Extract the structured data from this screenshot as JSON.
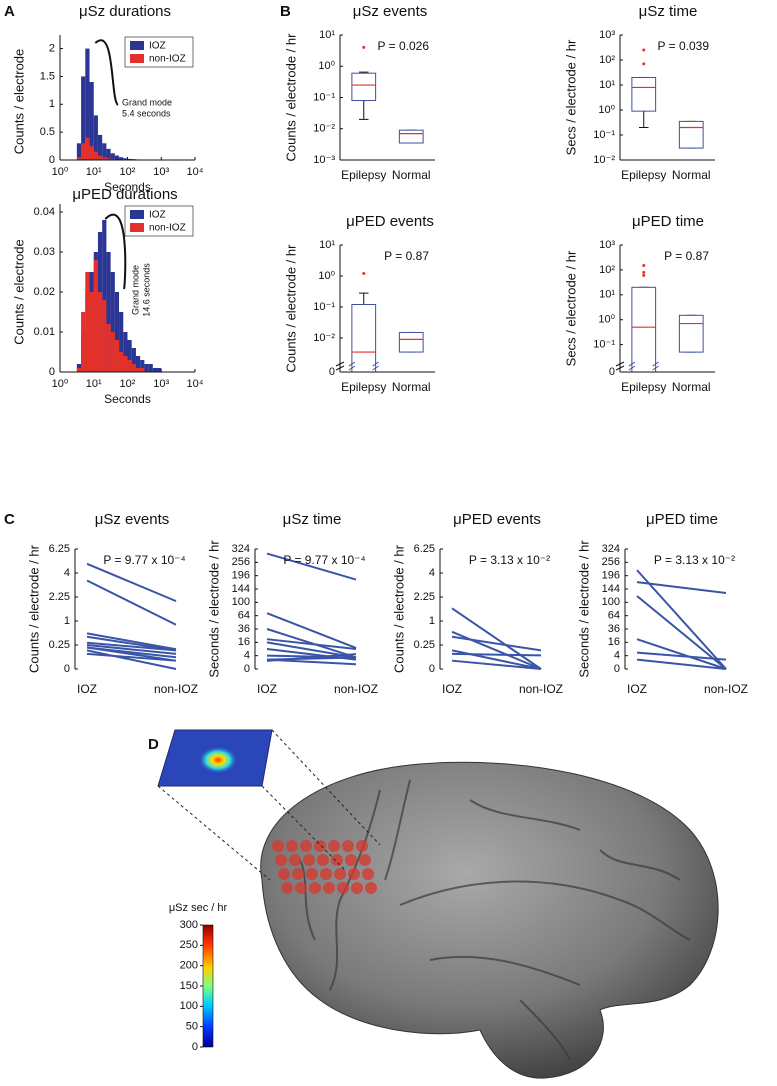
{
  "chart_data": [
    {
      "type": "histogram",
      "panel": "A",
      "title": "μSz durations",
      "xlabel": "Seconds",
      "ylabel": "Counts / electrode",
      "xscale": "log",
      "xlim": [
        1,
        10000
      ],
      "xticks": [
        {
          "value": 1,
          "label": "10⁰"
        },
        {
          "value": 10,
          "label": "10¹"
        },
        {
          "value": 100,
          "label": "10²"
        },
        {
          "value": 1000,
          "label": "10³"
        },
        {
          "value": 10000,
          "label": "10⁴"
        }
      ],
      "ylim": [
        0,
        2.1
      ],
      "yticks": [
        0,
        0.5,
        1,
        1.5,
        2
      ],
      "legend": "upper right",
      "bins": [
        3.16,
        4.22,
        5.62,
        7.5,
        10,
        13.3,
        17.8,
        23.7,
        31.6,
        42.2,
        56.2,
        75,
        100,
        133,
        178,
        237,
        316,
        422,
        562,
        750,
        1000
      ],
      "series": [
        {
          "name": "IOZ",
          "color": "#2b3593",
          "values": [
            0.3,
            1.5,
            2.0,
            1.4,
            0.8,
            0.45,
            0.3,
            0.2,
            0.12,
            0.08,
            0.05,
            0.03,
            0.02,
            0.015,
            0.01,
            0.008,
            0.005,
            0.003,
            0.002,
            0.001
          ]
        },
        {
          "name": "non-IOZ",
          "color": "#e2312b",
          "values": [
            0.05,
            0.3,
            0.4,
            0.25,
            0.15,
            0.08,
            0.05,
            0.03,
            0.02,
            0.01,
            0.01,
            0.005,
            0.003,
            0.002,
            0.001,
            0.001,
            0,
            0,
            0,
            0
          ]
        }
      ],
      "annotation": [
        "Grand mode",
        "5.4 seconds"
      ]
    },
    {
      "type": "histogram",
      "title": "μPED durations",
      "xlabel": "Seconds",
      "ylabel": "Counts / electrode",
      "xscale": "log",
      "xlim": [
        1,
        10000
      ],
      "xticks": [
        {
          "value": 1,
          "label": "10⁰"
        },
        {
          "value": 10,
          "label": "10¹"
        },
        {
          "value": 100,
          "label": "10²"
        },
        {
          "value": 1000,
          "label": "10³"
        },
        {
          "value": 10000,
          "label": "10⁴"
        }
      ],
      "ylim": [
        0,
        0.04
      ],
      "yticks": [
        0,
        0.01,
        0.02,
        0.03,
        0.04
      ],
      "legend": "upper right",
      "bins": [
        3.16,
        4.22,
        5.62,
        7.5,
        10,
        13.3,
        17.8,
        23.7,
        31.6,
        42.2,
        56.2,
        75,
        100,
        133,
        178,
        237,
        316,
        422,
        562,
        750,
        1000
      ],
      "series": [
        {
          "name": "IOZ",
          "color": "#2b3593",
          "values": [
            0.002,
            0.01,
            0.02,
            0.025,
            0.03,
            0.035,
            0.038,
            0.03,
            0.025,
            0.02,
            0.015,
            0.01,
            0.008,
            0.006,
            0.004,
            0.003,
            0.002,
            0.002,
            0.001,
            0.001
          ]
        },
        {
          "name": "non-IOZ",
          "color": "#e2312b",
          "values": [
            0.001,
            0.015,
            0.025,
            0.02,
            0.028,
            0.02,
            0.018,
            0.012,
            0.01,
            0.008,
            0.005,
            0.004,
            0.003,
            0.002,
            0.001,
            0.001,
            0,
            0,
            0,
            0
          ]
        }
      ],
      "annotation": [
        "Grand mode",
        "14.6 seconds"
      ]
    },
    {
      "type": "box",
      "panel": "B",
      "title": "μSz events",
      "ylabel": "Counts / electrode / hr",
      "yscale": "log",
      "ylim": [
        0.001,
        10
      ],
      "yticks": [
        {
          "value": 0.001,
          "label": "10⁻³"
        },
        {
          "value": 0.01,
          "label": "10⁻²"
        },
        {
          "value": 0.1,
          "label": "10⁻¹"
        },
        {
          "value": 1,
          "label": "10⁰"
        },
        {
          "value": 10,
          "label": "10¹"
        }
      ],
      "categories": [
        "Epilepsy",
        "Normal"
      ],
      "color": "#3f4fa0",
      "median_color": "#e2312b",
      "boxes": [
        {
          "whisker_low": 0.02,
          "q1": 0.08,
          "median": 0.25,
          "q3": 0.6,
          "whisker_high": 0.65,
          "outliers": [
            4
          ]
        },
        {
          "whisker_low": 0.0035,
          "q1": 0.0035,
          "median": 0.007,
          "q3": 0.009,
          "whisker_high": 0.009,
          "outliers": []
        }
      ],
      "annotation": "P = 0.026"
    },
    {
      "type": "box",
      "title": "μSz time",
      "ylabel": "Secs / electrode / hr",
      "yscale": "log",
      "ylim": [
        0.01,
        1000
      ],
      "yticks": [
        {
          "value": 0.01,
          "label": "10⁻²"
        },
        {
          "value": 0.1,
          "label": "10⁻¹"
        },
        {
          "value": 1,
          "label": "10⁰"
        },
        {
          "value": 10,
          "label": "10¹"
        },
        {
          "value": 100,
          "label": "10²"
        },
        {
          "value": 1000,
          "label": "10³"
        }
      ],
      "categories": [
        "Epilepsy",
        "Normal"
      ],
      "color": "#3f4fa0",
      "median_color": "#e2312b",
      "boxes": [
        {
          "whisker_low": 0.2,
          "q1": 0.9,
          "median": 8,
          "q3": 20,
          "whisker_high": 20,
          "outliers": [
            70,
            250
          ]
        },
        {
          "whisker_low": 0.03,
          "q1": 0.03,
          "median": 0.2,
          "q3": 0.35,
          "whisker_high": 0.35,
          "outliers": []
        }
      ],
      "annotation": "P = 0.039"
    },
    {
      "type": "box",
      "title": "μPED events",
      "ylabel": "Counts / electrode / hr",
      "yscale": "log",
      "axis_break": true,
      "ylim": [
        0,
        10
      ],
      "yticks": [
        0,
        {
          "value": 0.01,
          "label": "10⁻²"
        },
        {
          "value": 0.1,
          "label": "10⁻¹"
        },
        {
          "value": 1,
          "label": "10⁰"
        },
        {
          "value": 10,
          "label": "10¹"
        }
      ],
      "categories": [
        "Epilepsy",
        "Normal"
      ],
      "color": "#3f4fa0",
      "median_color": "#e2312b",
      "boxes": [
        {
          "whisker_low": 0,
          "q1": 0,
          "median": 0.0035,
          "q3": 0.12,
          "whisker_high": 0.28,
          "outliers": [
            1.2
          ]
        },
        {
          "whisker_low": 0.0035,
          "q1": 0.0035,
          "median": 0.009,
          "q3": 0.015,
          "whisker_high": 0.015,
          "outliers": []
        }
      ],
      "annotation": "P = 0.87"
    },
    {
      "type": "box",
      "title": "μPED time",
      "ylabel": "Secs / electrode / hr",
      "yscale": "log",
      "axis_break": true,
      "ylim": [
        0,
        1000
      ],
      "yticks": [
        0,
        {
          "value": 0.1,
          "label": "10⁻¹"
        },
        {
          "value": 1,
          "label": "10⁰"
        },
        {
          "value": 10,
          "label": "10¹"
        },
        {
          "value": 100,
          "label": "10²"
        },
        {
          "value": 1000,
          "label": "10³"
        }
      ],
      "categories": [
        "Epilepsy",
        "Normal"
      ],
      "color": "#3f4fa0",
      "median_color": "#e2312b",
      "boxes": [
        {
          "whisker_low": 0,
          "q1": 0,
          "median": 0.5,
          "q3": 20,
          "whisker_high": 20,
          "outliers": [
            60,
            80,
            150
          ]
        },
        {
          "whisker_low": 0.05,
          "q1": 0.05,
          "median": 0.7,
          "q3": 1.5,
          "whisker_high": 1.5,
          "outliers": []
        }
      ],
      "annotation": "P = 0.87"
    },
    {
      "type": "slope",
      "panel": "C",
      "title": "μSz events",
      "ylabel": "Counts / electrode / hr",
      "yscale": "sqrt",
      "ylim": [
        0,
        6.25
      ],
      "yticks": [
        0,
        0.25,
        1,
        2.25,
        4,
        6.25
      ],
      "categories": [
        "IOZ",
        "non-IOZ"
      ],
      "color": "#3a55a8",
      "series": [
        {
          "values": [
            4.8,
            2.0
          ]
        },
        {
          "values": [
            3.4,
            0.85
          ]
        },
        {
          "values": [
            0.55,
            0.17
          ]
        },
        {
          "values": [
            0.45,
            0.15
          ]
        },
        {
          "values": [
            0.3,
            0.15
          ]
        },
        {
          "values": [
            0.25,
            0.1
          ]
        },
        {
          "values": [
            0.2,
            0.06
          ]
        },
        {
          "values": [
            0.2,
            0.03
          ]
        },
        {
          "values": [
            0.15,
            0
          ]
        },
        {
          "values": [
            0.1,
            0.03
          ]
        }
      ],
      "annotation": "P = 9.77 x 10⁻⁴"
    },
    {
      "type": "slope",
      "title": "μSz time",
      "ylabel": "Seconds / electrode / hr",
      "yscale": "sqrt",
      "ylim": [
        0,
        324
      ],
      "yticks": [
        0,
        4,
        16,
        36,
        64,
        100,
        144,
        196,
        256,
        324
      ],
      "categories": [
        "IOZ",
        "non-IOZ"
      ],
      "color": "#3a55a8",
      "series": [
        {
          "values": [
            300,
            180
          ]
        },
        {
          "values": [
            70,
            10
          ]
        },
        {
          "values": [
            36,
            3
          ]
        },
        {
          "values": [
            20,
            9
          ]
        },
        {
          "values": [
            16,
            3
          ]
        },
        {
          "values": [
            9,
            2
          ]
        },
        {
          "values": [
            4,
            3
          ]
        },
        {
          "values": [
            2,
            0.5
          ]
        },
        {
          "values": [
            1.5,
            5
          ]
        },
        {
          "values": [
            2,
            3
          ]
        }
      ],
      "annotation": "P = 9.77 x 10⁻⁴"
    },
    {
      "type": "slope",
      "title": "μPED events",
      "ylabel": "Counts / electrode / hr",
      "yscale": "sqrt",
      "ylim": [
        0,
        6.25
      ],
      "yticks": [
        0,
        0.25,
        1,
        2.25,
        4,
        6.25
      ],
      "categories": [
        "IOZ",
        "non-IOZ"
      ],
      "color": "#3a55a8",
      "series": [
        {
          "values": [
            1.6,
            0
          ]
        },
        {
          "values": [
            0.6,
            0
          ]
        },
        {
          "values": [
            0.45,
            0.15
          ]
        },
        {
          "values": [
            0.15,
            0
          ]
        },
        {
          "values": [
            0.1,
            0.08
          ]
        },
        {
          "values": [
            0.03,
            0
          ]
        }
      ],
      "annotation": "P = 3.13 x 10⁻²"
    },
    {
      "type": "slope",
      "title": "μPED time",
      "ylabel": "Seconds / electrode / hr",
      "yscale": "sqrt",
      "ylim": [
        0,
        324
      ],
      "yticks": [
        0,
        4,
        16,
        36,
        64,
        100,
        144,
        196,
        256,
        324
      ],
      "categories": [
        "IOZ",
        "non-IOZ"
      ],
      "color": "#3a55a8",
      "series": [
        {
          "values": [
            220,
            0
          ]
        },
        {
          "values": [
            170,
            130
          ]
        },
        {
          "values": [
            120,
            0
          ]
        },
        {
          "values": [
            20,
            0
          ]
        },
        {
          "values": [
            6,
            2
          ]
        },
        {
          "values": [
            2,
            0
          ]
        }
      ],
      "annotation": "P = 3.13 x 10⁻²"
    },
    {
      "type": "colorbar",
      "panel": "D",
      "title": "μSz sec / hr",
      "ylim": [
        0,
        300
      ],
      "yticks": [
        0,
        50,
        100,
        150,
        200,
        250,
        300
      ]
    }
  ]
}
